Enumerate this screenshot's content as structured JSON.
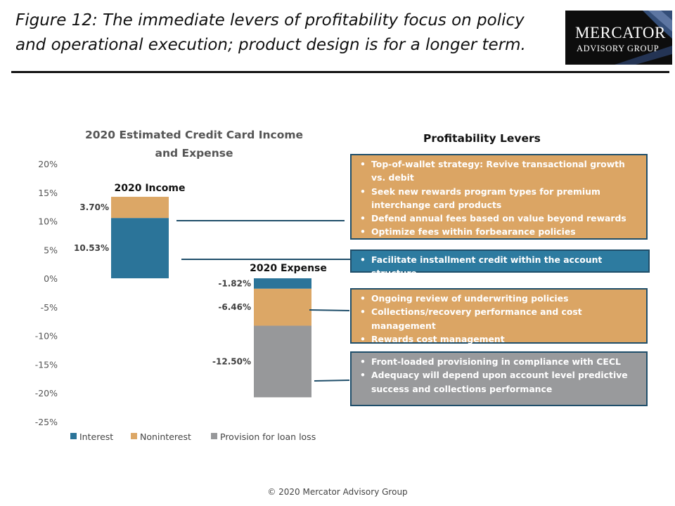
{
  "header": {
    "title": "Figure 12: The immediate levers of profitability focus on policy and operational execution; product design is for a longer term.",
    "logo_line1": "Mercator",
    "logo_line2": "Advisory Group"
  },
  "chart_data": {
    "type": "bar",
    "title": "2020 Estimated Credit Card Income and Expense",
    "categories": [
      "2020 Income",
      "2020 Expense"
    ],
    "series": [
      {
        "name": "Interest",
        "values": [
          10.53,
          -1.82
        ],
        "labels": [
          "10.53%",
          "-1.82%"
        ],
        "color": "#2b7499"
      },
      {
        "name": "Noninterest",
        "values": [
          3.7,
          -6.46
        ],
        "labels": [
          "3.70%",
          "-6.46%"
        ],
        "color": "#dca766"
      },
      {
        "name": "Provision for loan loss",
        "values": [
          0,
          -12.5
        ],
        "labels": [
          "",
          "-12.50%"
        ],
        "color": "#97989a"
      }
    ],
    "stacked": true,
    "ylim": [
      -25,
      20
    ],
    "yticks": [
      20,
      15,
      10,
      5,
      0,
      -5,
      -10,
      -15,
      -20,
      -25
    ],
    "ytick_labels": [
      "20%",
      "15%",
      "10%",
      "5%",
      "0%",
      "-5%",
      "-10%",
      "-15%",
      "-20%",
      "-25%"
    ],
    "legend_position": "bottom",
    "grid": false
  },
  "levers": {
    "title": "Profitability  Levers",
    "boxes": [
      {
        "style": "orange",
        "items": [
          "Top-of-wallet strategy: Revive transactional growth vs. debit",
          "Seek new rewards program types for premium interchange card products",
          "Defend annual fees based on value beyond rewards",
          "Optimize fees within forbearance policies"
        ]
      },
      {
        "style": "blue",
        "items": [
          "Facilitate installment credit within the account structure"
        ]
      },
      {
        "style": "orange",
        "items": [
          "Ongoing review of underwriting policies",
          "Collections/recovery performance and cost management",
          "Rewards cost management"
        ]
      },
      {
        "style": "gray",
        "items": [
          "Front-loaded provisioning in compliance with CECL",
          "Adequacy will depend upon account level predictive success and collections performance"
        ]
      }
    ]
  },
  "footer": {
    "copyright": "© 2020 Mercator Advisory Group"
  }
}
